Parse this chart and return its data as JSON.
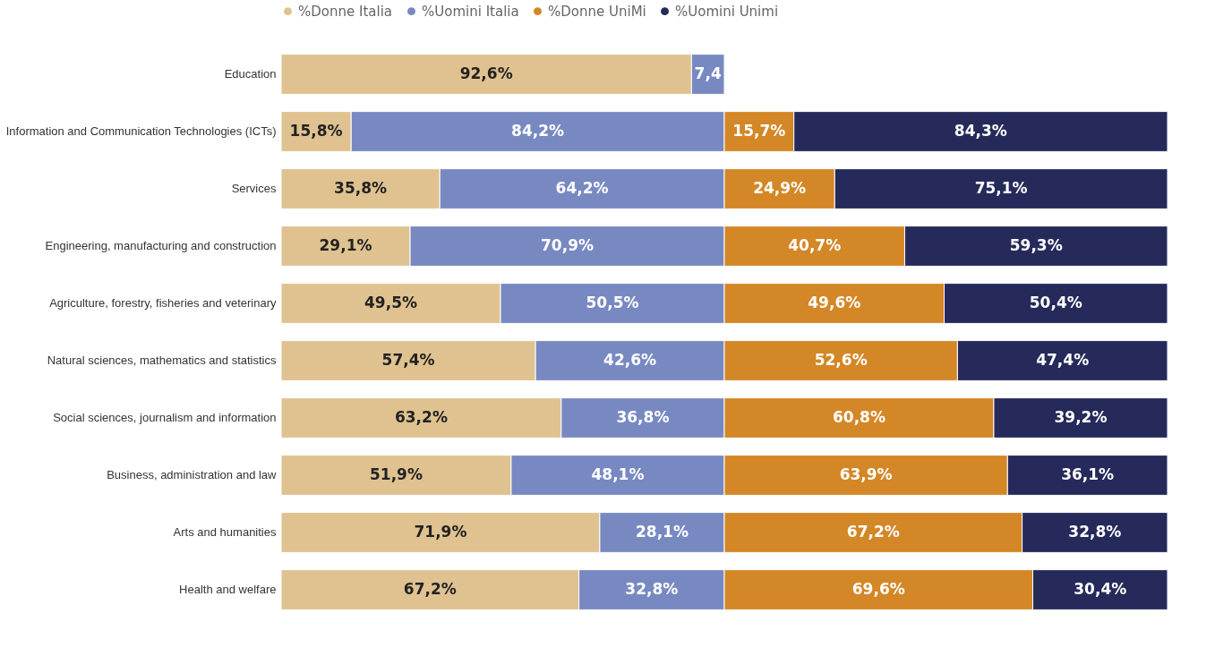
{
  "chart_data": {
    "type": "bar",
    "orientation": "horizontal",
    "stacked": true,
    "legend": "top",
    "tick_labels": "y",
    "xlim": [
      0,
      200
    ],
    "categories": [
      "Education",
      "Information and Communication Technologies (ICTs)",
      "Services",
      "Engineering, manufacturing and construction",
      "Agriculture, forestry, fisheries and veterinary",
      "Natural sciences, mathematics and statistics",
      "Social sciences, journalism and information",
      "Business, administration and law",
      "Arts and humanities",
      "Health and welfare"
    ],
    "series": [
      {
        "name": "%Donne Italia",
        "color": "#dfc290",
        "values": [
          92.6,
          15.8,
          35.8,
          29.1,
          49.5,
          57.4,
          63.2,
          51.9,
          71.9,
          67.2
        ],
        "value_labels": [
          "92,6%",
          "15,8%",
          "35,8%",
          "29,1%",
          "49,5%",
          "57,4%",
          "63,2%",
          "51,9%",
          "71,9%",
          "67,2%"
        ]
      },
      {
        "name": "%Uomini Italia",
        "color": "#7889c2",
        "values": [
          7.4,
          84.2,
          64.2,
          70.9,
          50.5,
          42.6,
          36.8,
          48.1,
          28.1,
          32.8
        ],
        "value_labels": [
          "7,4",
          "84,2%",
          "64,2%",
          "70,9%",
          "50,5%",
          "42,6%",
          "36,8%",
          "48,1%",
          "28,1%",
          "32,8%"
        ]
      },
      {
        "name": "%Donne UniMi",
        "color": "#d48726",
        "values": [
          null,
          15.7,
          24.9,
          40.7,
          49.6,
          52.6,
          60.8,
          63.9,
          67.2,
          69.6
        ],
        "value_labels": [
          null,
          "15,7%",
          "24,9%",
          "40,7%",
          "49,6%",
          "52,6%",
          "60,8%",
          "63,9%",
          "67,2%",
          "69,6%"
        ]
      },
      {
        "name": "%Uomini Unimi",
        "color": "#252a5a",
        "values": [
          null,
          84.3,
          75.1,
          59.3,
          50.4,
          47.4,
          39.2,
          36.1,
          32.8,
          30.4
        ],
        "value_labels": [
          null,
          "84,3%",
          "75,1%",
          "59,3%",
          "50,4%",
          "47,4%",
          "39,2%",
          "36,1%",
          "32,8%",
          "30,4%"
        ]
      }
    ]
  }
}
